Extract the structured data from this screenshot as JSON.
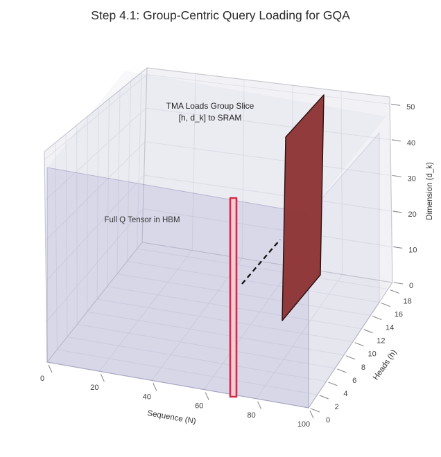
{
  "title": "Step 4.1: Group-Centric Query Loading for GQA",
  "annotations": {
    "tma_line1": "TMA Loads Group Slice",
    "tma_line2": "[h, d_k] to SRAM",
    "hbm": "Full Q Tensor in HBM"
  },
  "chart_data": {
    "type": "3d-box-diagram",
    "title": "Step 4.1: Group-Centric Query Loading for GQA",
    "axes": {
      "x": {
        "label": "Sequence (N)",
        "ticks": [
          0,
          20,
          40,
          60,
          80,
          100
        ],
        "range": [
          0,
          100
        ]
      },
      "y": {
        "label": "Heads (h)",
        "ticks": [
          0,
          2,
          4,
          6,
          8,
          10,
          12,
          14,
          16,
          18
        ],
        "range": [
          0,
          19
        ]
      },
      "z": {
        "label": "Dimension (d_k)",
        "ticks": [
          0,
          10,
          20,
          30,
          40,
          50
        ],
        "range": [
          0,
          52
        ]
      }
    },
    "grid": true,
    "legend": "none",
    "elements": [
      {
        "name": "full-q-tensor",
        "kind": "translucent-box",
        "label": "Full Q Tensor in HBM",
        "color": "#9898c8",
        "x": [
          0,
          100
        ],
        "y": [
          0,
          16
        ],
        "z": [
          0,
          48
        ]
      },
      {
        "name": "group-slice-column",
        "kind": "highlight-column",
        "color": "#d62b47",
        "x": [
          70,
          72
        ],
        "y": [
          0,
          1
        ],
        "z": [
          0,
          48
        ]
      },
      {
        "name": "sram-slice-plane",
        "kind": "solid-plane",
        "label": "TMA Loads Group Slice [h, d_k] to SRAM",
        "color": "#8c3232",
        "x": 71,
        "y": [
          12,
          19
        ],
        "z": [
          0,
          46
        ]
      },
      {
        "name": "transfer-arrow",
        "kind": "dashed-line",
        "color": "#111111"
      }
    ],
    "colors": {
      "pane_wall": "#f2f2f6",
      "pane_floor": "#f0f0f4",
      "grid_line": "#e1e1e9",
      "edge_line": "#c9c9d2",
      "tensor_fill": "#9898c8",
      "tensor_edge": "#8282b4",
      "plane_fill": "#8c3232",
      "plane_edge": "#2a0f0f",
      "slab_stroke": "#d62b47",
      "slab_fill": "#f6cdd7",
      "dash_line": "#111111"
    }
  }
}
